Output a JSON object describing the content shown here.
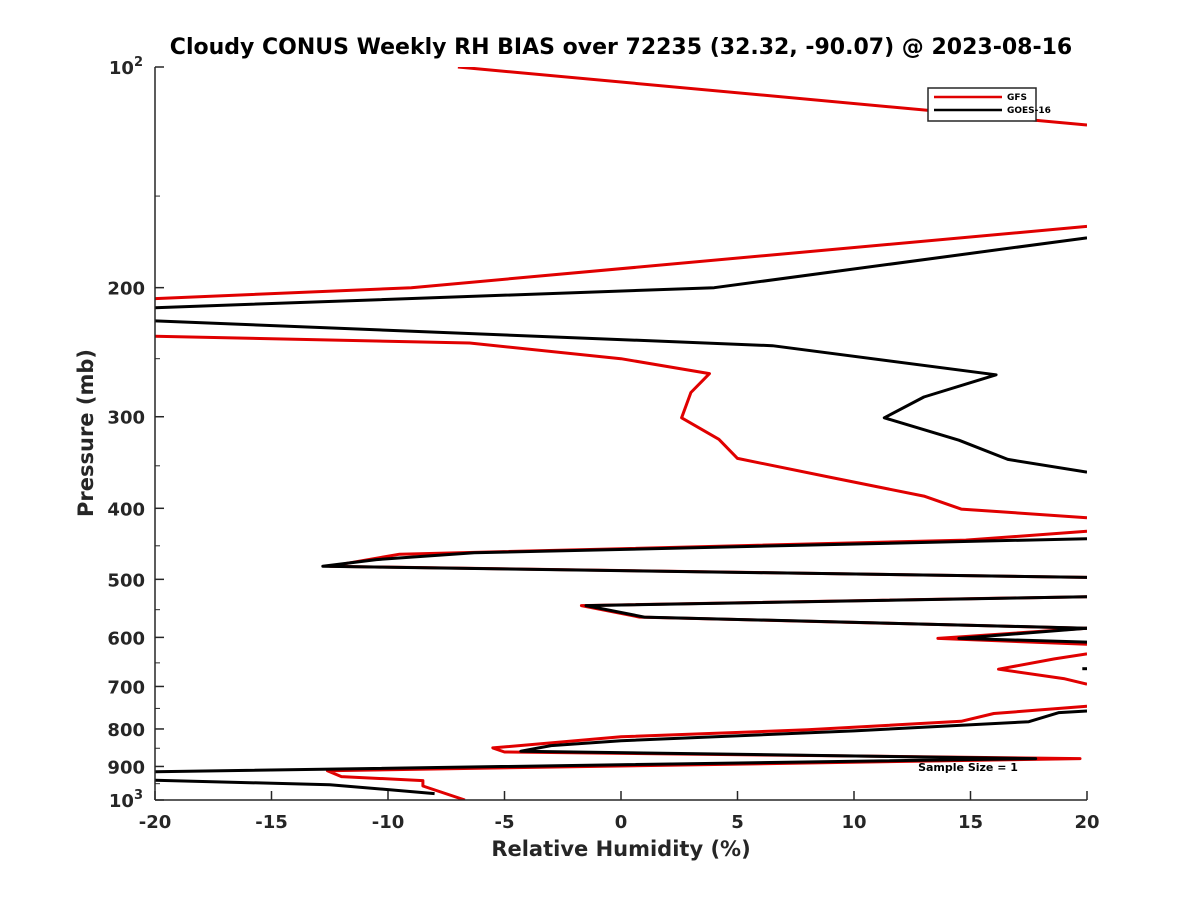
{
  "chart_data": {
    "type": "line",
    "title": "Cloudy CONUS Weekly RH BIAS over 72235 (32.32, -90.07) @ 2023-08-16",
    "xlabel": "Relative Humidity (%)",
    "ylabel": "Pressure (mb)",
    "xlim": [
      -20,
      20
    ],
    "ylim": [
      100,
      1000
    ],
    "yscale": "log",
    "y_reversed": true,
    "xticks": [
      -20,
      -15,
      -10,
      -5,
      0,
      5,
      10,
      15,
      20
    ],
    "yticks": [
      {
        "value": 100,
        "label": "10",
        "sup": "2"
      },
      {
        "value": 200,
        "label": "200"
      },
      {
        "value": 300,
        "label": "300"
      },
      {
        "value": 400,
        "label": "400"
      },
      {
        "value": 500,
        "label": "500"
      },
      {
        "value": 600,
        "label": "600"
      },
      {
        "value": 700,
        "label": "700"
      },
      {
        "value": 800,
        "label": "800"
      },
      {
        "value": 900,
        "label": "900"
      },
      {
        "value": 1000,
        "label": "10",
        "sup": "3"
      }
    ],
    "grid": false,
    "legend_position": "top-right",
    "annotation": "Sample Size = 1",
    "series": [
      {
        "name": "GFS",
        "color": "#e00000",
        "points": [
          [
            -7.0,
            100
          ],
          [
            20.0,
            120
          ],
          null,
          [
            20.0,
            165
          ],
          [
            -9,
            200
          ],
          [
            -20,
            207
          ],
          null,
          [
            -20,
            233
          ],
          [
            -6.5,
            238
          ],
          [
            0,
            250
          ],
          [
            3.8,
            262
          ],
          [
            3.0,
            278
          ],
          [
            2.6,
            301
          ],
          [
            4.2,
            322
          ],
          [
            5.0,
            342
          ],
          [
            9.0,
            363
          ],
          [
            13.0,
            385
          ],
          [
            14.6,
            401
          ],
          [
            20.0,
            412
          ],
          null,
          [
            20.0,
            430
          ],
          [
            14.8,
            442
          ],
          [
            -9.5,
            462
          ],
          [
            -12.5,
            480
          ],
          [
            20.0,
            497
          ],
          null,
          [
            20.0,
            528
          ],
          [
            -1.7,
            543
          ],
          [
            0.8,
            563
          ],
          [
            20.0,
            583
          ],
          null,
          [
            20.0,
            583
          ],
          [
            13.6,
            602
          ],
          [
            20.0,
            613
          ],
          null,
          [
            20.0,
            632
          ],
          [
            18.6,
            642
          ],
          [
            16.2,
            663
          ],
          [
            19.0,
            683
          ],
          [
            20.0,
            695
          ],
          null,
          [
            20.0,
            745
          ],
          [
            16.0,
            762
          ],
          [
            14.6,
            781
          ],
          [
            8.0,
            802
          ],
          [
            0,
            820
          ],
          [
            -5.5,
            849
          ],
          [
            -5.0,
            860
          ],
          [
            19.7,
            878
          ],
          [
            -12.6,
            912
          ],
          [
            -12.0,
            929
          ],
          [
            -8.5,
            941
          ],
          [
            -8.5,
            957
          ],
          [
            -6.7,
            1000
          ]
        ]
      },
      {
        "name": "GOES-16",
        "color": "#000000",
        "points": [
          [
            20.0,
            171
          ],
          [
            4.0,
            200
          ],
          [
            -20,
            213
          ],
          null,
          [
            -20,
            222
          ],
          [
            6.5,
            240
          ],
          [
            16.1,
            263
          ],
          [
            13.0,
            282
          ],
          [
            11.3,
            301
          ],
          [
            14.5,
            323
          ],
          [
            16.6,
            343
          ],
          [
            20.0,
            357
          ],
          null,
          [
            20.0,
            440
          ],
          [
            -6.3,
            460
          ],
          [
            -10.5,
            470
          ],
          [
            -12.8,
            480
          ],
          [
            20.0,
            497
          ],
          null,
          [
            20.0,
            528
          ],
          [
            -1.5,
            543
          ],
          [
            1.0,
            563
          ],
          [
            20.0,
            583
          ],
          null,
          [
            20.0,
            583
          ],
          [
            14.5,
            602
          ],
          [
            20.0,
            609
          ],
          null,
          [
            19.8,
            662
          ],
          [
            20.0,
            662
          ],
          null,
          [
            20.0,
            756
          ],
          [
            18.8,
            760
          ],
          [
            17.5,
            782
          ],
          [
            10.0,
            805
          ],
          [
            0,
            830
          ],
          [
            -3.0,
            843
          ],
          [
            -4.3,
            858
          ],
          [
            17.8,
            878
          ],
          [
            -20,
            915
          ],
          null,
          [
            -20,
            940
          ],
          [
            -12.5,
            953
          ],
          [
            -8.0,
            980
          ]
        ]
      }
    ]
  }
}
